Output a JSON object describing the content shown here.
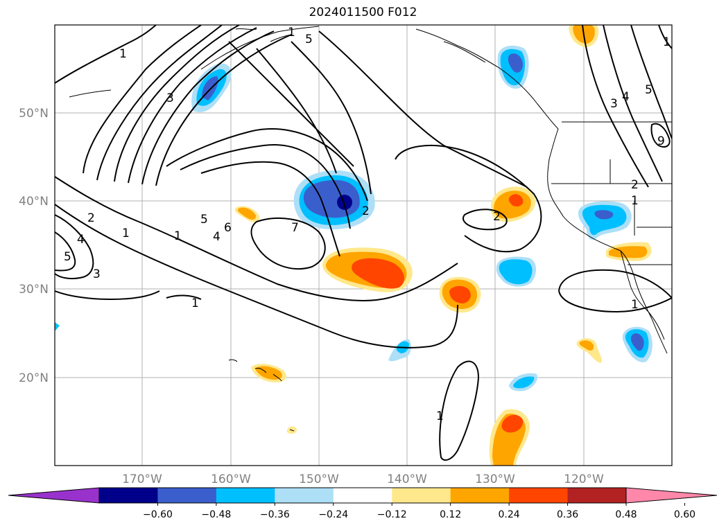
{
  "title": "2024011500 F012",
  "lat_labels": [
    "50°N",
    "40°N",
    "30°N",
    "20°N"
  ],
  "lon_labels": [
    "170°W",
    "160°W",
    "150°W",
    "140°W",
    "130°W",
    "120°W"
  ],
  "colorbar": {
    "tick_labels": [
      "−0.60",
      "−0.48",
      "−0.36",
      "−0.24",
      "−0.12",
      "0.12",
      "0.24",
      "0.36",
      "0.48",
      "0.60"
    ],
    "colors": [
      "#9932CC",
      "#00008B",
      "#3A5FCD",
      "#00BFFF",
      "#ADDFF7",
      "#FFFFFF",
      "#FFE88C",
      "#FFA500",
      "#FF4500",
      "#B22222",
      "#FF88AA"
    ]
  },
  "contour_labels": [
    "1",
    "3",
    "5",
    "6",
    "4",
    "1",
    "7",
    "2",
    "1",
    "2",
    "4",
    "5",
    "3",
    "1",
    "1",
    "2",
    "1",
    "3",
    "4",
    "5",
    "9",
    "2",
    "1",
    "1",
    "5",
    "1"
  ]
}
